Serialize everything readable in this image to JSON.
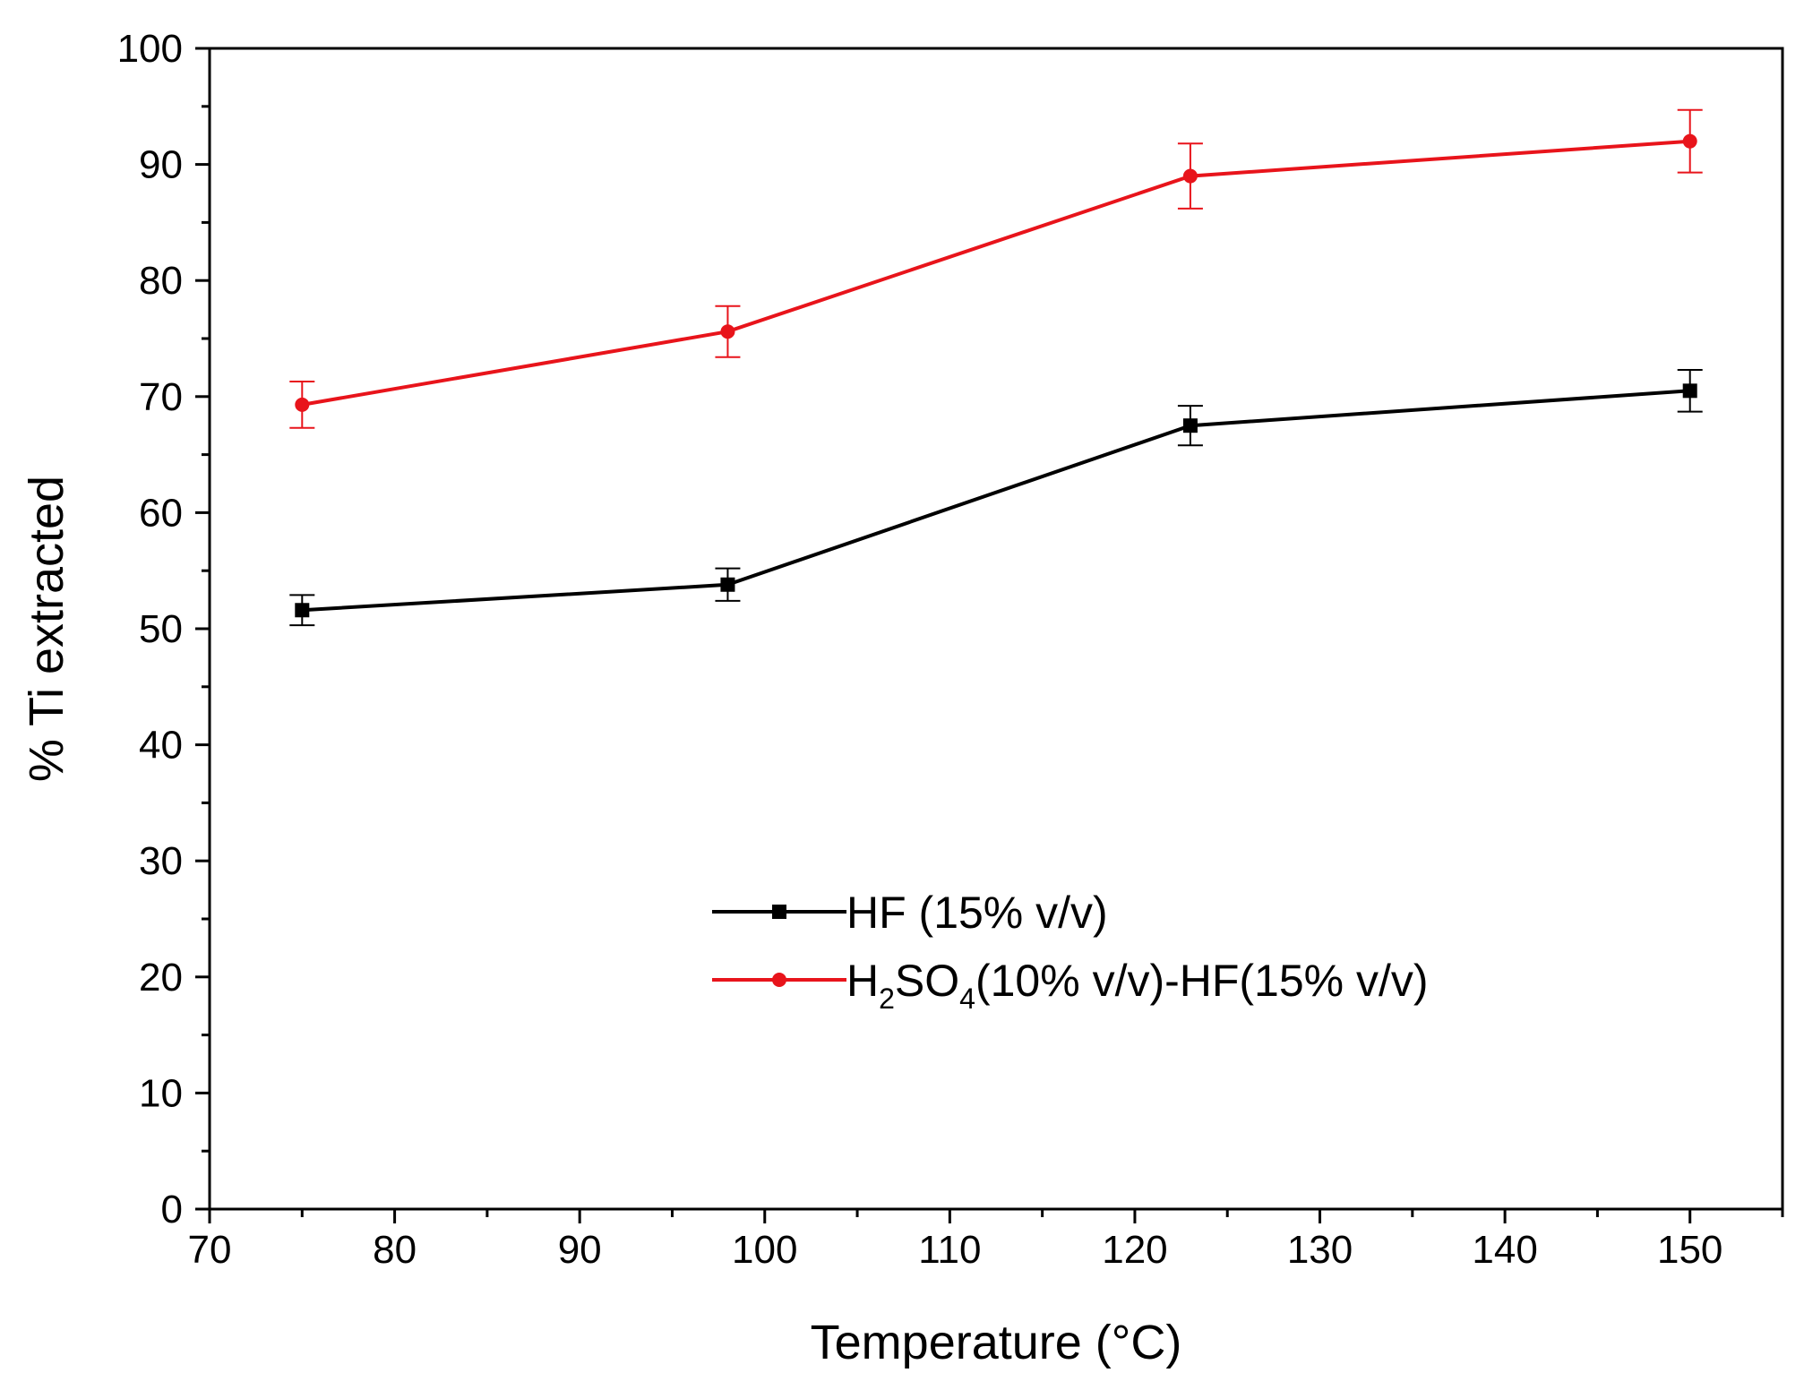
{
  "chart_data": {
    "type": "line",
    "title": "",
    "xlabel": "Temperature (°C)",
    "ylabel": "% Ti extracted",
    "xlim": [
      70,
      155
    ],
    "ylim": [
      0,
      100
    ],
    "x_ticks": [
      70,
      80,
      90,
      100,
      110,
      120,
      130,
      140,
      150
    ],
    "y_ticks": [
      0,
      10,
      20,
      30,
      40,
      50,
      60,
      70,
      80,
      90,
      100
    ],
    "x_minor_step": 5,
    "y_minor_step": 5,
    "grid": false,
    "legend_position": "lower-center",
    "series": [
      {
        "name": "HF (15% v/v)",
        "color": "#000000",
        "marker": "square",
        "x": [
          75,
          98,
          123,
          150
        ],
        "y": [
          51.6,
          53.8,
          67.5,
          70.5
        ],
        "yerr": [
          1.3,
          1.4,
          1.7,
          1.8
        ]
      },
      {
        "name": "H2SO4(10% v/v)-HF(15% v/v)",
        "color": "#e8141b",
        "marker": "circle",
        "x": [
          75,
          98,
          123,
          150
        ],
        "y": [
          69.3,
          75.6,
          89.0,
          92.0
        ],
        "yerr": [
          2.0,
          2.2,
          2.8,
          2.7
        ]
      }
    ]
  }
}
